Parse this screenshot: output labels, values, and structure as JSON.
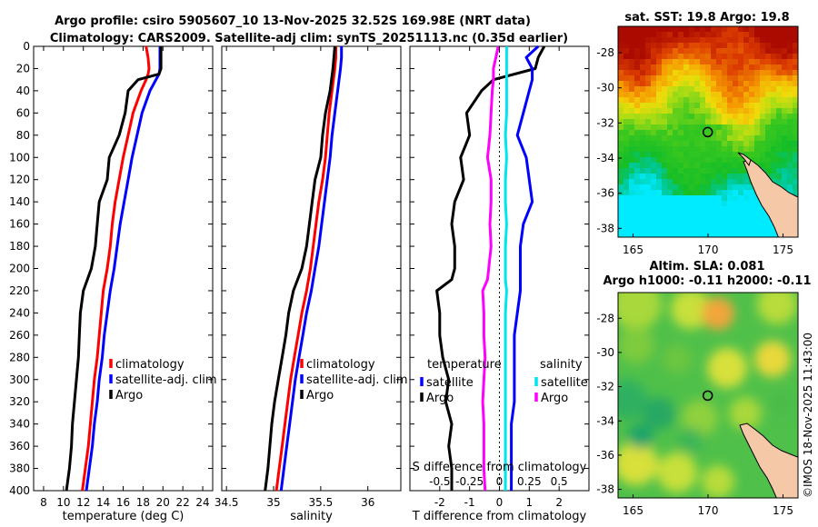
{
  "figure": {
    "title_line1": "Argo profile: csiro 5905607_10 13-Nov-2025 32.52S 169.98E (NRT data)",
    "title_line2": "Climatology: CARS2009. Satellite-adj clim: synTS_20251113.nc (0.35d earlier)",
    "credit": "©IMOS 18-Nov-2025 11:43:00"
  },
  "colors": {
    "argo": "#000000",
    "climatology": "#ff0000",
    "satellite": "#0000ff",
    "argo_salinity_diff": "#ff00ff",
    "satellite_salinity_diff": "#00e5ee",
    "land": "#f5c9a8"
  },
  "chart_data": [
    {
      "id": "temperature",
      "type": "line",
      "xlabel": "temperature (deg C)",
      "ylabel": "",
      "xlim": [
        7,
        25
      ],
      "ylim": [
        400,
        0
      ],
      "x_ticks": [
        8,
        10,
        12,
        14,
        16,
        18,
        20,
        22,
        24
      ],
      "y_ticks": [
        0,
        20,
        40,
        60,
        80,
        100,
        120,
        140,
        160,
        180,
        200,
        220,
        240,
        260,
        280,
        300,
        320,
        340,
        360,
        380,
        400
      ],
      "depth": [
        0,
        10,
        20,
        25,
        30,
        40,
        60,
        80,
        100,
        120,
        140,
        160,
        180,
        200,
        220,
        240,
        260,
        280,
        300,
        320,
        340,
        360,
        380,
        400
      ],
      "series": [
        {
          "name": "climatology",
          "values": [
            18.3,
            18.5,
            18.6,
            18.5,
            18.3,
            17.8,
            17.0,
            16.5,
            16.0,
            15.6,
            15.2,
            14.9,
            14.7,
            14.4,
            14.0,
            13.8,
            13.6,
            13.4,
            13.1,
            12.9,
            12.7,
            12.5,
            12.2,
            11.9
          ]
        },
        {
          "name": "satellite-adj. clim",
          "values": [
            19.7,
            19.7,
            19.7,
            19.6,
            19.3,
            18.7,
            17.9,
            17.4,
            16.9,
            16.5,
            16.1,
            15.7,
            15.4,
            15.1,
            14.7,
            14.4,
            14.1,
            13.9,
            13.6,
            13.4,
            13.1,
            12.9,
            12.6,
            12.3
          ]
        },
        {
          "name": "Argo",
          "values": [
            19.8,
            19.8,
            19.8,
            19.6,
            17.5,
            16.5,
            16.2,
            15.6,
            14.6,
            14.4,
            13.6,
            13.4,
            13.2,
            12.8,
            12.0,
            11.7,
            11.6,
            11.5,
            11.3,
            11.1,
            10.9,
            10.8,
            10.6,
            10.3
          ]
        }
      ],
      "legend": [
        "climatology",
        "satellite-adj. clim",
        "Argo"
      ]
    },
    {
      "id": "salinity",
      "type": "line",
      "xlabel": "salinity",
      "ylabel": "",
      "xlim": [
        34.45,
        36.35
      ],
      "ylim": [
        400,
        0
      ],
      "x_ticks": [
        34.5,
        35,
        35.5,
        36
      ],
      "x_tick_labels": [
        "34.5",
        "35",
        "35.5",
        "36"
      ],
      "depth": [
        0,
        10,
        20,
        40,
        60,
        80,
        100,
        120,
        140,
        160,
        180,
        200,
        220,
        240,
        260,
        280,
        300,
        320,
        340,
        360,
        380,
        400
      ],
      "series": [
        {
          "name": "climatology",
          "values": [
            35.66,
            35.66,
            35.65,
            35.62,
            35.59,
            35.57,
            35.55,
            35.52,
            35.48,
            35.45,
            35.42,
            35.39,
            35.35,
            35.3,
            35.26,
            35.22,
            35.18,
            35.15,
            35.12,
            35.09,
            35.06,
            35.03
          ]
        },
        {
          "name": "satellite-adj. clim",
          "values": [
            35.72,
            35.72,
            35.71,
            35.68,
            35.65,
            35.62,
            35.6,
            35.57,
            35.54,
            35.51,
            35.48,
            35.44,
            35.4,
            35.35,
            35.31,
            35.27,
            35.23,
            35.2,
            35.17,
            35.14,
            35.11,
            35.08
          ]
        },
        {
          "name": "Argo",
          "values": [
            35.65,
            35.64,
            35.63,
            35.6,
            35.55,
            35.52,
            35.5,
            35.44,
            35.41,
            35.38,
            35.35,
            35.3,
            35.21,
            35.16,
            35.13,
            35.09,
            35.05,
            35.01,
            34.98,
            34.96,
            34.94,
            34.91
          ]
        }
      ],
      "legend": [
        "climatology",
        "satellite-adj. clim",
        "Argo"
      ]
    },
    {
      "id": "difference",
      "type": "line",
      "xlabel": "T difference from climatology",
      "x2label": "S difference from climatology",
      "xlim": [
        -3,
        3
      ],
      "ylim": [
        400,
        0
      ],
      "x_ticks": [
        -2,
        -1,
        0,
        1,
        2
      ],
      "x2_tick_labels": [
        "-0.5",
        "-0.25",
        "0",
        "0.25",
        "0.5"
      ],
      "depth": [
        0,
        10,
        20,
        30,
        40,
        60,
        80,
        100,
        120,
        140,
        160,
        180,
        200,
        210,
        220,
        240,
        260,
        280,
        300,
        320,
        340,
        360,
        380,
        400
      ],
      "series": [
        {
          "name": "temperature Argo",
          "values": [
            1.5,
            1.3,
            1.2,
            -0.2,
            -0.6,
            -1.1,
            -1.0,
            -1.3,
            -1.2,
            -1.5,
            -1.6,
            -1.5,
            -1.5,
            -1.6,
            -2.1,
            -2.0,
            -2.0,
            -1.9,
            -1.7,
            -1.8,
            -1.6,
            -1.7,
            -1.6,
            -1.6
          ]
        },
        {
          "name": "temperature satellite",
          "values": [
            1.3,
            0.9,
            1.1,
            1.1,
            1.0,
            0.8,
            0.6,
            0.9,
            1.0,
            1.1,
            0.8,
            0.7,
            0.7,
            0.7,
            0.7,
            0.6,
            0.5,
            0.5,
            0.5,
            0.5,
            0.4,
            0.4,
            0.4,
            0.4
          ]
        },
        {
          "name": "salinity Argo",
          "values": [
            -0.01,
            -0.03,
            -0.05,
            -0.05,
            -0.06,
            -0.07,
            -0.08,
            -0.1,
            -0.07,
            -0.07,
            -0.08,
            -0.07,
            -0.09,
            -0.1,
            -0.14,
            -0.13,
            -0.13,
            -0.12,
            -0.13,
            -0.14,
            -0.13,
            -0.13,
            -0.13,
            -0.12
          ]
        },
        {
          "name": "salinity satellite",
          "values": [
            0.06,
            0.06,
            0.06,
            0.06,
            0.06,
            0.06,
            0.05,
            0.06,
            0.05,
            0.05,
            0.06,
            0.05,
            0.05,
            0.05,
            0.06,
            0.05,
            0.05,
            0.05,
            0.05,
            0.05,
            0.05,
            0.05,
            0.05,
            0.05
          ]
        }
      ],
      "legend_temperature": {
        "title": "temperature",
        "entries": [
          "satellite",
          "Argo"
        ]
      },
      "legend_salinity": {
        "title": "salinity",
        "entries": [
          "satellite",
          "Argo"
        ]
      }
    },
    {
      "id": "sst_map",
      "type": "heatmap",
      "title": "sat. SST: 19.8 Argo: 19.8",
      "xlim": [
        164,
        176
      ],
      "ylim": [
        -38.5,
        -26.5
      ],
      "x_ticks": [
        165,
        170,
        175
      ],
      "y_ticks": [
        -28,
        -30,
        -32,
        -34,
        -36,
        -38
      ],
      "marker": {
        "lon": 169.98,
        "lat": -32.52
      }
    },
    {
      "id": "sla_map",
      "type": "heatmap",
      "title": "Altim. SLA: 0.081",
      "subtitle": "Argo h1000: -0.11 h2000: -0.11",
      "xlim": [
        164,
        176
      ],
      "ylim": [
        -38.5,
        -26.5
      ],
      "x_ticks": [
        165,
        170,
        175
      ],
      "y_ticks": [
        -28,
        -30,
        -32,
        -34,
        -36,
        -38
      ],
      "marker": {
        "lon": 169.98,
        "lat": -32.52
      }
    }
  ]
}
